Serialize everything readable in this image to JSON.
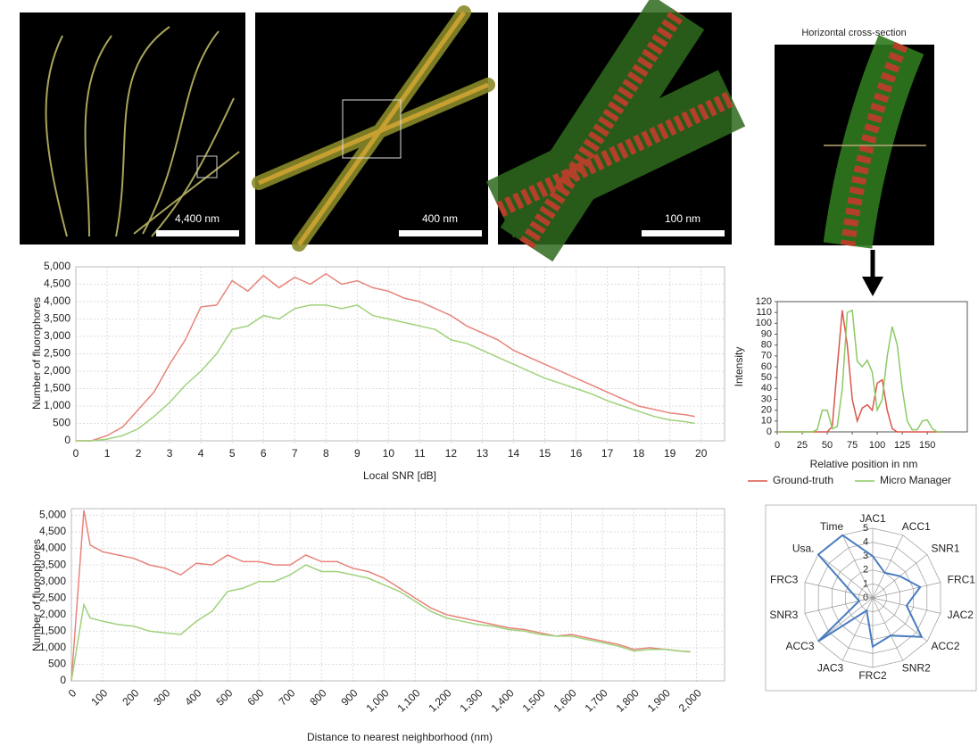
{
  "images": [
    {
      "scale_bar": "4,400 nm"
    },
    {
      "scale_bar": "400 nm"
    },
    {
      "scale_bar": "100 nm"
    },
    {
      "title": "Horizontal cross-section"
    }
  ],
  "chart_data": [
    {
      "type": "line",
      "ylabel": "Number of fluorophores",
      "xlabel": "Local SNR [dB]",
      "xlim": [
        0,
        20.75
      ],
      "ylim": [
        0,
        5000
      ],
      "grid": true,
      "xticks": [
        0,
        1,
        2,
        3,
        4,
        5,
        6,
        7,
        8,
        9,
        10,
        11,
        12,
        13,
        14,
        15,
        16,
        17,
        18,
        19,
        20
      ],
      "yticks": [
        0,
        500,
        {
          "value": 1000,
          "label": "1,000"
        },
        {
          "value": 1500,
          "label": "1,500"
        },
        {
          "value": 2000,
          "label": "2,000"
        },
        {
          "value": 2500,
          "label": "2,500"
        },
        {
          "value": 3000,
          "label": "3,000"
        },
        {
          "value": 3500,
          "label": "3,500"
        },
        {
          "value": 4000,
          "label": "4,000"
        },
        {
          "value": 4500,
          "label": "4,500"
        },
        {
          "value": 5000,
          "label": "5,000"
        }
      ],
      "x": [
        0,
        0.5,
        1,
        1.5,
        2,
        2.5,
        3,
        3.5,
        4,
        4.5,
        5,
        5.5,
        6,
        6.5,
        7,
        7.5,
        8,
        8.5,
        9,
        9.5,
        10,
        10.5,
        11,
        11.5,
        12,
        12.5,
        13,
        13.5,
        14,
        14.5,
        15,
        15.5,
        16,
        16.5,
        17,
        17.5,
        18,
        18.5,
        19,
        19.5,
        19.8
      ],
      "series": [
        {
          "color": "#e8837a",
          "values": [
            0,
            0,
            150,
            400,
            900,
            1400,
            2200,
            2900,
            3850,
            3900,
            4600,
            4300,
            4750,
            4400,
            4700,
            4500,
            4800,
            4500,
            4600,
            4400,
            4300,
            4100,
            4000,
            3800,
            3600,
            3300,
            3100,
            2900,
            2600,
            2400,
            2200,
            2000,
            1800,
            1600,
            1400,
            1200,
            1000,
            900,
            800,
            750,
            700
          ]
        },
        {
          "color": "#9fd17a",
          "values": [
            0,
            0,
            50,
            150,
            350,
            700,
            1100,
            1600,
            2000,
            2500,
            3200,
            3300,
            3600,
            3500,
            3800,
            3900,
            3900,
            3800,
            3900,
            3600,
            3500,
            3400,
            3300,
            3200,
            2900,
            2800,
            2600,
            2400,
            2200,
            2000,
            1800,
            1650,
            1500,
            1350,
            1150,
            1000,
            850,
            700,
            600,
            550,
            500
          ]
        }
      ]
    },
    {
      "type": "line",
      "ylabel": "Number of fluorophores",
      "xlabel": "Distance to nearest neighborhood (nm)",
      "xlim": [
        0,
        2090
      ],
      "ylim": [
        0,
        5200
      ],
      "grid": true,
      "xticks": [
        0,
        100,
        200,
        300,
        400,
        500,
        600,
        700,
        800,
        900,
        {
          "value": 1000,
          "label": "1,000"
        },
        {
          "value": 1100,
          "label": "1,100"
        },
        {
          "value": 1200,
          "label": "1,200"
        },
        {
          "value": 1300,
          "label": "1,300"
        },
        {
          "value": 1400,
          "label": "1,400"
        },
        {
          "value": 1500,
          "label": "1,500"
        },
        {
          "value": 1600,
          "label": "1,600"
        },
        {
          "value": 1700,
          "label": "1,700"
        },
        {
          "value": 1800,
          "label": "1,800"
        },
        {
          "value": 1900,
          "label": "1,900"
        },
        {
          "value": 2000,
          "label": "2,000"
        }
      ],
      "yticks": [
        0,
        500,
        {
          "value": 1000,
          "label": "1,000"
        },
        {
          "value": 1500,
          "label": "1,500"
        },
        {
          "value": 2000,
          "label": "2,000"
        },
        {
          "value": 2500,
          "label": "2,500"
        },
        {
          "value": 3000,
          "label": "3,000"
        },
        {
          "value": 3500,
          "label": "3,500"
        },
        {
          "value": 4000,
          "label": "4,000"
        },
        {
          "value": 4500,
          "label": "4,500"
        },
        {
          "value": 5000,
          "label": "5,000"
        }
      ],
      "x": [
        0,
        40,
        60,
        100,
        150,
        200,
        250,
        300,
        350,
        400,
        450,
        500,
        550,
        600,
        650,
        700,
        750,
        800,
        850,
        900,
        950,
        1000,
        1050,
        1100,
        1150,
        1200,
        1250,
        1300,
        1350,
        1400,
        1450,
        1500,
        1550,
        1600,
        1650,
        1700,
        1750,
        1800,
        1850,
        1900,
        1950,
        1980
      ],
      "series": [
        {
          "color": "#e8837a",
          "values": [
            0,
            5150,
            4100,
            3900,
            3800,
            3700,
            3500,
            3400,
            3200,
            3550,
            3500,
            3800,
            3600,
            3600,
            3500,
            3500,
            3800,
            3600,
            3600,
            3400,
            3300,
            3100,
            2800,
            2500,
            2200,
            2000,
            1900,
            1800,
            1700,
            1600,
            1550,
            1450,
            1350,
            1400,
            1300,
            1200,
            1100,
            950,
            1000,
            950,
            900,
            880
          ]
        },
        {
          "color": "#9fd17a",
          "values": [
            0,
            2300,
            1900,
            1800,
            1700,
            1650,
            1500,
            1450,
            1400,
            1800,
            2100,
            2700,
            2800,
            3000,
            3000,
            3200,
            3500,
            3300,
            3300,
            3200,
            3100,
            2900,
            2700,
            2400,
            2100,
            1900,
            1800,
            1700,
            1650,
            1550,
            1500,
            1400,
            1350,
            1350,
            1250,
            1150,
            1050,
            900,
            950,
            950,
            900,
            870
          ]
        }
      ]
    },
    {
      "type": "line",
      "ylabel": "Intensity",
      "xlabel": "Relative position in nm",
      "xlim": [
        0,
        190
      ],
      "ylim": [
        0,
        120
      ],
      "grid": false,
      "xticks": [
        0,
        25,
        50,
        75,
        100,
        125,
        150
      ],
      "yticks": [
        0,
        10,
        20,
        30,
        40,
        50,
        60,
        70,
        80,
        90,
        100,
        110,
        120
      ],
      "x": [
        0,
        5,
        10,
        15,
        20,
        25,
        30,
        35,
        40,
        45,
        50,
        55,
        60,
        65,
        70,
        75,
        80,
        85,
        90,
        95,
        100,
        105,
        110,
        115,
        120,
        125,
        130,
        135,
        140,
        145,
        150,
        155,
        160,
        165
      ],
      "series": [
        {
          "name": "Ground-truth",
          "color": "#d9574a",
          "values": [
            0,
            0,
            0,
            0,
            0,
            0,
            0,
            0,
            0,
            0,
            0,
            5,
            60,
            112,
            80,
            30,
            10,
            22,
            25,
            20,
            45,
            48,
            20,
            3,
            0,
            0,
            0,
            0,
            0,
            0,
            0,
            0,
            0,
            0
          ]
        },
        {
          "name": "Micro Manager",
          "color": "#8cc965",
          "values": [
            0,
            0,
            0,
            0,
            0,
            0,
            0,
            0,
            2,
            20,
            20,
            3,
            5,
            40,
            110,
            112,
            65,
            60,
            66,
            55,
            20,
            30,
            70,
            97,
            80,
            40,
            10,
            2,
            2,
            10,
            11,
            3,
            0,
            0
          ]
        }
      ]
    },
    {
      "type": "radar",
      "categories": [
        "JAC1",
        "ACC1",
        "SNR1",
        "FRC1",
        "JAC2",
        "ACC2",
        "SNR2",
        "FRC2",
        "JAC3",
        "ACC3",
        "SNR3",
        "FRC3",
        "Usa.",
        "Time"
      ],
      "rlim": [
        0,
        5
      ],
      "rticks": [
        0,
        1,
        2,
        3,
        4,
        5
      ],
      "series": [
        {
          "color": "#4a7cc0",
          "values": [
            3,
            2,
            2.5,
            3.5,
            2.5,
            4.5,
            3,
            3.5,
            1,
            5,
            1,
            1.5,
            5,
            5
          ]
        }
      ]
    }
  ]
}
